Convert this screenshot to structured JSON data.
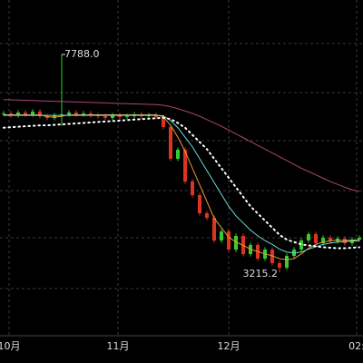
{
  "chart_data": {
    "type": "candlestick",
    "up_color": "#33cc33",
    "down_color": "#dd3322",
    "ylim": [
      1882,
      8931
    ],
    "max_label": "7788.0",
    "min_label": "3215.2",
    "x_labels": [
      "10月",
      "11月",
      "12月",
      "02:"
    ],
    "open": [
      6540,
      6550,
      6512,
      6569,
      6531,
      6588,
      6493,
      6454,
      6512,
      6531,
      6569,
      6531,
      6550,
      6512,
      6493,
      6454,
      6512,
      6474,
      6493,
      6531,
      6493,
      6512,
      6474,
      6264,
      5597,
      5788,
      5121,
      4835,
      4454,
      4359,
      3883,
      4073,
      3692,
      3978,
      3597,
      3788,
      3502,
      3692,
      3407,
      3311,
      3559,
      3692,
      3883,
      4016,
      3826,
      3940,
      3864,
      3921,
      3826,
      3902
    ],
    "high": [
      6600,
      6600,
      6619,
      6619,
      6638,
      6638,
      6543,
      6562,
      7788,
      6619,
      6619,
      6600,
      6600,
      6562,
      6543,
      6562,
      6562,
      6543,
      6581,
      6581,
      6562,
      6562,
      6524,
      6314,
      5838,
      5838,
      5171,
      4885,
      4504,
      4409,
      4123,
      4123,
      4028,
      4028,
      3838,
      3838,
      3742,
      3742,
      3457,
      3609,
      3742,
      3933,
      4066,
      4066,
      3990,
      3990,
      3971,
      3971,
      3952,
      3990
    ],
    "low": [
      6490,
      6462,
      6462,
      6481,
      6481,
      6443,
      6404,
      6404,
      6290,
      6481,
      6481,
      6481,
      6462,
      6443,
      6404,
      6404,
      6424,
      6424,
      6443,
      6443,
      6443,
      6424,
      6214,
      5547,
      5547,
      5071,
      4785,
      4404,
      4309,
      3833,
      3833,
      3642,
      3642,
      3547,
      3547,
      3452,
      3452,
      3357,
      3215.2,
      3261,
      3509,
      3642,
      3833,
      3776,
      3776,
      3814,
      3814,
      3776,
      3776,
      3852
    ],
    "close": [
      6550,
      6512,
      6569,
      6531,
      6588,
      6493,
      6454,
      6512,
      6531,
      6569,
      6531,
      6550,
      6512,
      6493,
      6454,
      6512,
      6474,
      6493,
      6531,
      6493,
      6512,
      6474,
      6264,
      5597,
      5788,
      5121,
      4835,
      4454,
      4359,
      3883,
      4073,
      3692,
      3978,
      3597,
      3788,
      3502,
      3692,
      3407,
      3311,
      3559,
      3692,
      3883,
      4016,
      3826,
      3940,
      3864,
      3921,
      3826,
      3902,
      3940
    ],
    "lines": [
      {
        "color": "#ee9933",
        "dashed": false,
        "values": [
          6520,
          6520,
          6520,
          6520,
          6520,
          6520,
          6480,
          6470,
          6490,
          6520,
          6520,
          6520,
          6520,
          6520,
          6520,
          6520,
          6520,
          6520,
          6520,
          6520,
          6520,
          6520,
          6480,
          6300,
          6050,
          5750,
          5400,
          5050,
          4700,
          4350,
          4150,
          3950,
          3850,
          3780,
          3700,
          3650,
          3600,
          3560,
          3500,
          3480,
          3500,
          3600,
          3720,
          3800,
          3850,
          3880,
          3890,
          3880,
          3890,
          3900
        ]
      },
      {
        "color": "#66dddd",
        "dashed": false,
        "values": [
          6510,
          6510,
          6510,
          6510,
          6510,
          6510,
          6510,
          6510,
          6510,
          6510,
          6510,
          6510,
          6510,
          6510,
          6510,
          6510,
          6510,
          6510,
          6510,
          6510,
          6510,
          6510,
          6500,
          6400,
          6250,
          6050,
          5850,
          5600,
          5350,
          5100,
          4850,
          4600,
          4400,
          4250,
          4100,
          3980,
          3880,
          3800,
          3700,
          3640,
          3620,
          3640,
          3700,
          3750,
          3800,
          3830,
          3850,
          3860,
          3870,
          3880
        ]
      },
      {
        "color": "#ffffff",
        "dashed": true,
        "values": [
          6250,
          6260,
          6270,
          6280,
          6290,
          6300,
          6300,
          6310,
          6320,
          6330,
          6340,
          6350,
          6360,
          6370,
          6380,
          6390,
          6400,
          6410,
          6420,
          6430,
          6440,
          6450,
          6460,
          6430,
          6350,
          6250,
          6100,
          5950,
          5800,
          5600,
          5400,
          5200,
          5000,
          4800,
          4600,
          4450,
          4300,
          4150,
          4000,
          3900,
          3850,
          3800,
          3780,
          3760,
          3740,
          3730,
          3720,
          3720,
          3730,
          3740
        ]
      },
      {
        "color": "#aa4477",
        "dashed": false,
        "values": [
          6840,
          6835,
          6830,
          6825,
          6820,
          6815,
          6810,
          6805,
          6800,
          6795,
          6790,
          6785,
          6780,
          6775,
          6770,
          6765,
          6760,
          6755,
          6750,
          6745,
          6740,
          6735,
          6720,
          6690,
          6650,
          6600,
          6550,
          6490,
          6420,
          6350,
          6280,
          6200,
          6120,
          6040,
          5960,
          5880,
          5800,
          5720,
          5640,
          5560,
          5480,
          5400,
          5330,
          5260,
          5190,
          5120,
          5060,
          5000,
          4950,
          4910
        ]
      }
    ]
  }
}
